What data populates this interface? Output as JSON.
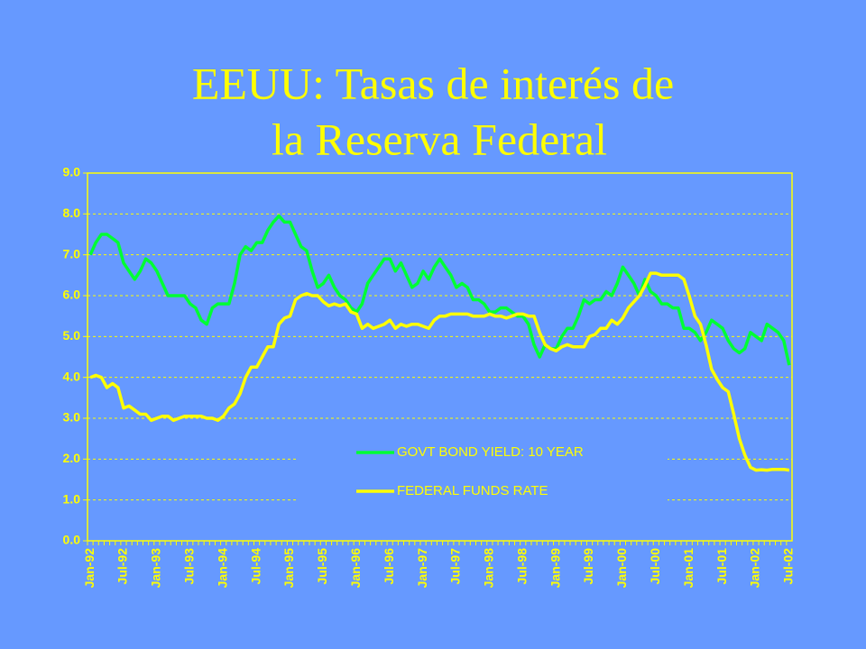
{
  "chart_data": {
    "type": "line",
    "title": [
      "EEUU: Tasas de interés de",
      "la Reserva Federal"
    ],
    "categories": [
      "Jan-92",
      null,
      null,
      null,
      null,
      null,
      "Jul-92",
      null,
      null,
      null,
      null,
      null,
      "Jan-93",
      null,
      null,
      null,
      null,
      null,
      "Jul-93",
      null,
      null,
      null,
      null,
      null,
      "Jan-94",
      null,
      null,
      null,
      null,
      null,
      "Jul-94",
      null,
      null,
      null,
      null,
      null,
      "Jan-95",
      null,
      null,
      null,
      null,
      null,
      "Jul-95",
      null,
      null,
      null,
      null,
      null,
      "Jan-96",
      null,
      null,
      null,
      null,
      null,
      "Jul-96",
      null,
      null,
      null,
      null,
      null,
      "Jan-97",
      null,
      null,
      null,
      null,
      null,
      "Jul-97",
      null,
      null,
      null,
      null,
      null,
      "Jan-98",
      null,
      null,
      null,
      null,
      null,
      "Jul-98",
      null,
      null,
      null,
      null,
      null,
      "Jan-99",
      null,
      null,
      null,
      null,
      null,
      "Jul-99",
      null,
      null,
      null,
      null,
      null,
      "Jan-00",
      null,
      null,
      null,
      null,
      null,
      "Jul-00",
      null,
      null,
      null,
      null,
      null,
      "Jan-01",
      null,
      null,
      null,
      null,
      null,
      "Jul-01",
      null,
      null,
      null,
      null,
      null,
      "Jan-02",
      null,
      null,
      null,
      null,
      null,
      "Jul-02"
    ],
    "series": [
      {
        "name": "GOVT BOND YIELD: 10 YEAR",
        "color": "#00ff33",
        "values": [
          7.0,
          7.3,
          7.5,
          7.5,
          7.4,
          7.3,
          6.8,
          6.6,
          6.4,
          6.6,
          6.9,
          6.8,
          6.6,
          6.3,
          6.0,
          6.0,
          6.0,
          6.0,
          5.8,
          5.7,
          5.4,
          5.3,
          5.7,
          5.8,
          5.8,
          5.8,
          6.3,
          7.0,
          7.2,
          7.1,
          7.3,
          7.3,
          7.6,
          7.8,
          7.95,
          7.8,
          7.8,
          7.5,
          7.2,
          7.1,
          6.6,
          6.2,
          6.3,
          6.5,
          6.2,
          6.0,
          5.9,
          5.7,
          5.6,
          5.8,
          6.3,
          6.5,
          6.7,
          6.9,
          6.9,
          6.6,
          6.8,
          6.5,
          6.2,
          6.3,
          6.6,
          6.4,
          6.7,
          6.9,
          6.7,
          6.5,
          6.2,
          6.3,
          6.2,
          5.9,
          5.9,
          5.8,
          5.6,
          5.6,
          5.7,
          5.7,
          5.6,
          5.5,
          5.5,
          5.3,
          4.8,
          4.5,
          4.8,
          4.7,
          4.7,
          5.0,
          5.2,
          5.2,
          5.5,
          5.9,
          5.8,
          5.9,
          5.9,
          6.1,
          6.0,
          6.3,
          6.7,
          6.5,
          6.3,
          6.0,
          6.4,
          6.1,
          6.0,
          5.8,
          5.8,
          5.7,
          5.7,
          5.2,
          5.2,
          5.1,
          4.9,
          5.1,
          5.4,
          5.3,
          5.2,
          4.9,
          4.7,
          4.6,
          4.7,
          5.1,
          5.0,
          4.9,
          5.3,
          5.2,
          5.1,
          4.9,
          4.3
        ]
      },
      {
        "name": "FEDERAL FUNDS RATE",
        "color": "#ffff00",
        "values": [
          4.0,
          4.05,
          4.0,
          3.75,
          3.85,
          3.75,
          3.25,
          3.3,
          3.2,
          3.1,
          3.1,
          2.95,
          3.0,
          3.05,
          3.05,
          2.95,
          3.0,
          3.05,
          3.05,
          3.05,
          3.05,
          3.0,
          3.0,
          2.95,
          3.05,
          3.25,
          3.35,
          3.6,
          4.0,
          4.25,
          4.25,
          4.5,
          4.75,
          4.75,
          5.3,
          5.45,
          5.5,
          5.9,
          6.0,
          6.05,
          6.0,
          6.0,
          5.85,
          5.75,
          5.8,
          5.75,
          5.8,
          5.6,
          5.55,
          5.2,
          5.3,
          5.2,
          5.25,
          5.3,
          5.4,
          5.2,
          5.3,
          5.25,
          5.3,
          5.3,
          5.25,
          5.2,
          5.4,
          5.5,
          5.5,
          5.55,
          5.55,
          5.55,
          5.55,
          5.5,
          5.5,
          5.5,
          5.55,
          5.5,
          5.5,
          5.45,
          5.5,
          5.55,
          5.55,
          5.5,
          5.5,
          5.1,
          4.8,
          4.7,
          4.65,
          4.75,
          4.8,
          4.75,
          4.75,
          4.75,
          5.0,
          5.05,
          5.2,
          5.2,
          5.4,
          5.3,
          5.45,
          5.7,
          5.85,
          6.0,
          6.25,
          6.55,
          6.55,
          6.5,
          6.5,
          6.5,
          6.5,
          6.4,
          5.98,
          5.5,
          5.3,
          4.8,
          4.2,
          3.95,
          3.75,
          3.65,
          3.1,
          2.5,
          2.1,
          1.8,
          1.73,
          1.74,
          1.73,
          1.75,
          1.75,
          1.75,
          1.73
        ]
      }
    ],
    "ylim": [
      0,
      9
    ],
    "yticks": [
      {
        "value": 0,
        "label": "0.0"
      },
      {
        "value": 1,
        "label": "1.0"
      },
      {
        "value": 2,
        "label": "2.0"
      },
      {
        "value": 3,
        "label": "3.0"
      },
      {
        "value": 4,
        "label": "4.0"
      },
      {
        "value": 5,
        "label": "5.0"
      },
      {
        "value": 6,
        "label": "6.0"
      },
      {
        "value": 7,
        "label": "7.0"
      },
      {
        "value": 8,
        "label": "8.0"
      },
      {
        "value": 9,
        "label": "9.0"
      }
    ],
    "grid": true,
    "legend": "lower center"
  }
}
